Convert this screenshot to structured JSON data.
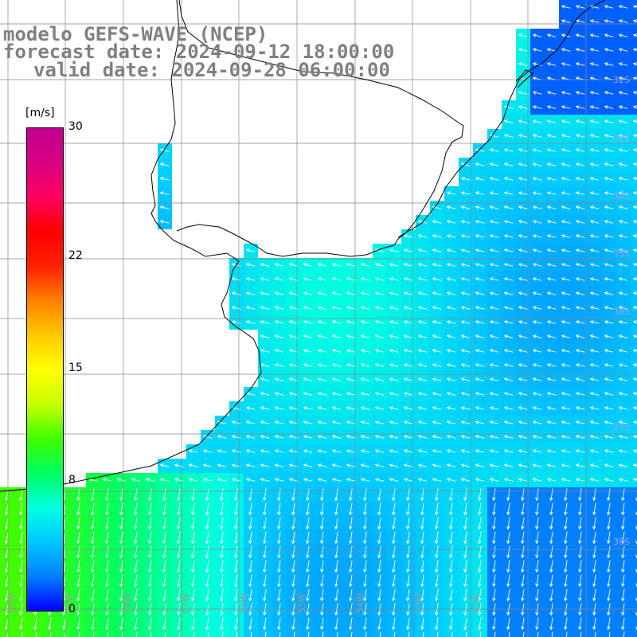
{
  "title": {
    "model": "modelo GEFS-WAVE (NCEP)",
    "forecast": "forecast date: 2024-09-12 18:00:00",
    "valid": "valid date: 2024-09-28 06:00:00"
  },
  "colorbar": {
    "unit": "[m/s]",
    "range": [
      0,
      30
    ],
    "ticks": [
      {
        "value": 30,
        "label": "30"
      },
      {
        "value": 22,
        "label": "22"
      },
      {
        "value": 15,
        "label": "15"
      },
      {
        "value": 8,
        "label": "8"
      },
      {
        "value": 0,
        "label": "0"
      }
    ],
    "colors": [
      "#0000ff",
      "#0080ff",
      "#00c8ff",
      "#00ffe0",
      "#00ff60",
      "#40ff00",
      "#c8ff00",
      "#ffff00",
      "#ffc800",
      "#ff8000",
      "#ff2000",
      "#ff0000",
      "#ff0060",
      "#d80080",
      "#c00090"
    ]
  },
  "map": {
    "lon_labels": [
      "60W",
      "59W",
      "58W",
      "57W",
      "56W",
      "55W",
      "54W",
      "53W",
      "52W"
    ],
    "lat_labels": [
      "32S",
      "33S",
      "34S",
      "35S",
      "36S",
      "37S",
      "38S"
    ],
    "land_color": "#ffffff",
    "coast_color": "#000000",
    "arrow_color": "#ffffff"
  }
}
